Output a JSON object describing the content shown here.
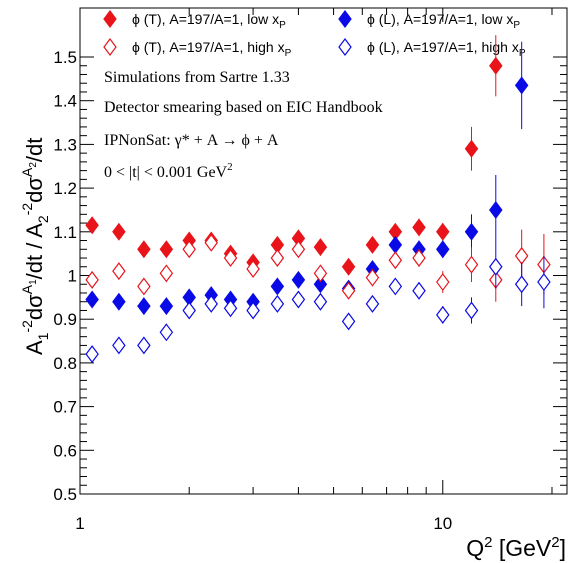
{
  "chart_data": {
    "type": "scatter",
    "x_scale": "log",
    "xlim": [
      1,
      22
    ],
    "ylim": [
      0.5,
      1.55
    ],
    "xlabel": {
      "base": "Q",
      "sup1": "2",
      "mid": " [GeV",
      "sup2": "2",
      "end": "]"
    },
    "ylabel": "A1^-2 dσ^A1/dt / A2^-2 dσ^A2/dt",
    "x_ticklabels": [
      {
        "x": 1,
        "label": "1"
      },
      {
        "x": 10,
        "label": "10"
      }
    ],
    "y_ticklabels": [
      "0.5",
      "0.6",
      "0.7",
      "0.8",
      "0.9",
      "1",
      "1.1",
      "1.2",
      "1.3",
      "1.4",
      "1.5"
    ],
    "legend": [
      {
        "text": "ϕ (T), A=197/A=1, low x",
        "sub": "P",
        "color": "#e8141a",
        "filled": true
      },
      {
        "text": "ϕ (L), A=197/A=1, low x",
        "sub": "P",
        "color": "#0a0ae6",
        "filled": true
      },
      {
        "text": "ϕ (T), A=197/A=1, high x",
        "sub": "P",
        "color": "#e8141a",
        "filled": false
      },
      {
        "text": "ϕ (L), A=197/A=1, high x",
        "sub": "P",
        "color": "#0a0ae6",
        "filled": false
      }
    ],
    "annotations": [
      {
        "text": "Simulations from Sartre 1.33"
      },
      {
        "text": "Detector smearing based on EIC Handbook"
      },
      {
        "text": "IPNonSat:  γ* + A  →  ϕ + A"
      },
      {
        "text": "0 < |t| < 0.001 GeV",
        "sup": "2"
      }
    ],
    "series": [
      {
        "name": "ϕ (T), A=197/A=1, low xP",
        "color": "#e8141a",
        "filled": true,
        "x": [
          1.08,
          1.28,
          1.5,
          1.73,
          2.0,
          2.3,
          2.6,
          3.0,
          3.5,
          4.0,
          4.6,
          5.5,
          6.4,
          7.4,
          8.6,
          10.0,
          12.0,
          14.0
        ],
        "y": [
          1.115,
          1.1,
          1.06,
          1.06,
          1.08,
          1.08,
          1.05,
          1.03,
          1.07,
          1.085,
          1.065,
          1.02,
          1.07,
          1.1,
          1.11,
          1.1,
          1.29,
          1.48
        ],
        "err": [
          0.01,
          0.01,
          0.01,
          0.01,
          0.01,
          0.01,
          0.01,
          0.01,
          0.01,
          0.01,
          0.01,
          0.01,
          0.01,
          0.015,
          0.02,
          0.02,
          0.05,
          0.07
        ]
      },
      {
        "name": "ϕ (L), A=197/A=1, low xP",
        "color": "#0a0ae6",
        "filled": true,
        "x": [
          1.08,
          1.28,
          1.5,
          1.73,
          2.0,
          2.3,
          2.6,
          3.0,
          3.5,
          4.0,
          4.6,
          5.5,
          6.4,
          7.4,
          8.6,
          10.0,
          12.0,
          14.0,
          16.5
        ],
        "y": [
          0.945,
          0.94,
          0.93,
          0.93,
          0.95,
          0.955,
          0.945,
          0.94,
          0.975,
          0.99,
          0.98,
          0.97,
          1.015,
          1.07,
          1.06,
          1.06,
          1.1,
          1.15,
          1.435
        ],
        "err": [
          0.01,
          0.01,
          0.01,
          0.01,
          0.01,
          0.01,
          0.01,
          0.01,
          0.01,
          0.01,
          0.01,
          0.01,
          0.01,
          0.015,
          0.02,
          0.02,
          0.04,
          0.08,
          0.1
        ]
      },
      {
        "name": "ϕ (T), A=197/A=1, high xP",
        "color": "#e8141a",
        "filled": false,
        "x": [
          1.08,
          1.28,
          1.5,
          1.73,
          2.0,
          2.3,
          2.6,
          3.0,
          3.5,
          4.0,
          4.6,
          5.5,
          6.4,
          7.4,
          8.6,
          10.0,
          12.0,
          14.0,
          16.5,
          19.0
        ],
        "y": [
          0.99,
          1.01,
          0.975,
          1.005,
          1.06,
          1.075,
          1.04,
          1.015,
          1.04,
          1.06,
          1.005,
          0.965,
          0.995,
          1.035,
          1.04,
          0.985,
          1.025,
          0.99,
          1.045,
          1.025
        ],
        "err": [
          0.01,
          0.01,
          0.01,
          0.01,
          0.01,
          0.01,
          0.01,
          0.01,
          0.01,
          0.01,
          0.01,
          0.01,
          0.01,
          0.015,
          0.02,
          0.025,
          0.04,
          0.05,
          0.06,
          0.07
        ]
      },
      {
        "name": "ϕ (L), A=197/A=1, high xP",
        "color": "#0a0ae6",
        "filled": false,
        "x": [
          1.08,
          1.28,
          1.5,
          1.73,
          2.0,
          2.3,
          2.6,
          3.0,
          3.5,
          4.0,
          4.6,
          5.5,
          6.4,
          7.4,
          8.6,
          10.0,
          12.0,
          14.0,
          16.5,
          19.0
        ],
        "y": [
          0.82,
          0.84,
          0.84,
          0.87,
          0.92,
          0.935,
          0.925,
          0.92,
          0.935,
          0.945,
          0.94,
          0.895,
          0.935,
          0.975,
          0.965,
          0.91,
          0.92,
          1.02,
          0.98,
          0.985
        ],
        "err": [
          0.01,
          0.01,
          0.01,
          0.01,
          0.01,
          0.01,
          0.01,
          0.01,
          0.01,
          0.01,
          0.01,
          0.01,
          0.01,
          0.015,
          0.02,
          0.02,
          0.03,
          0.05,
          0.05,
          0.06
        ]
      }
    ]
  }
}
